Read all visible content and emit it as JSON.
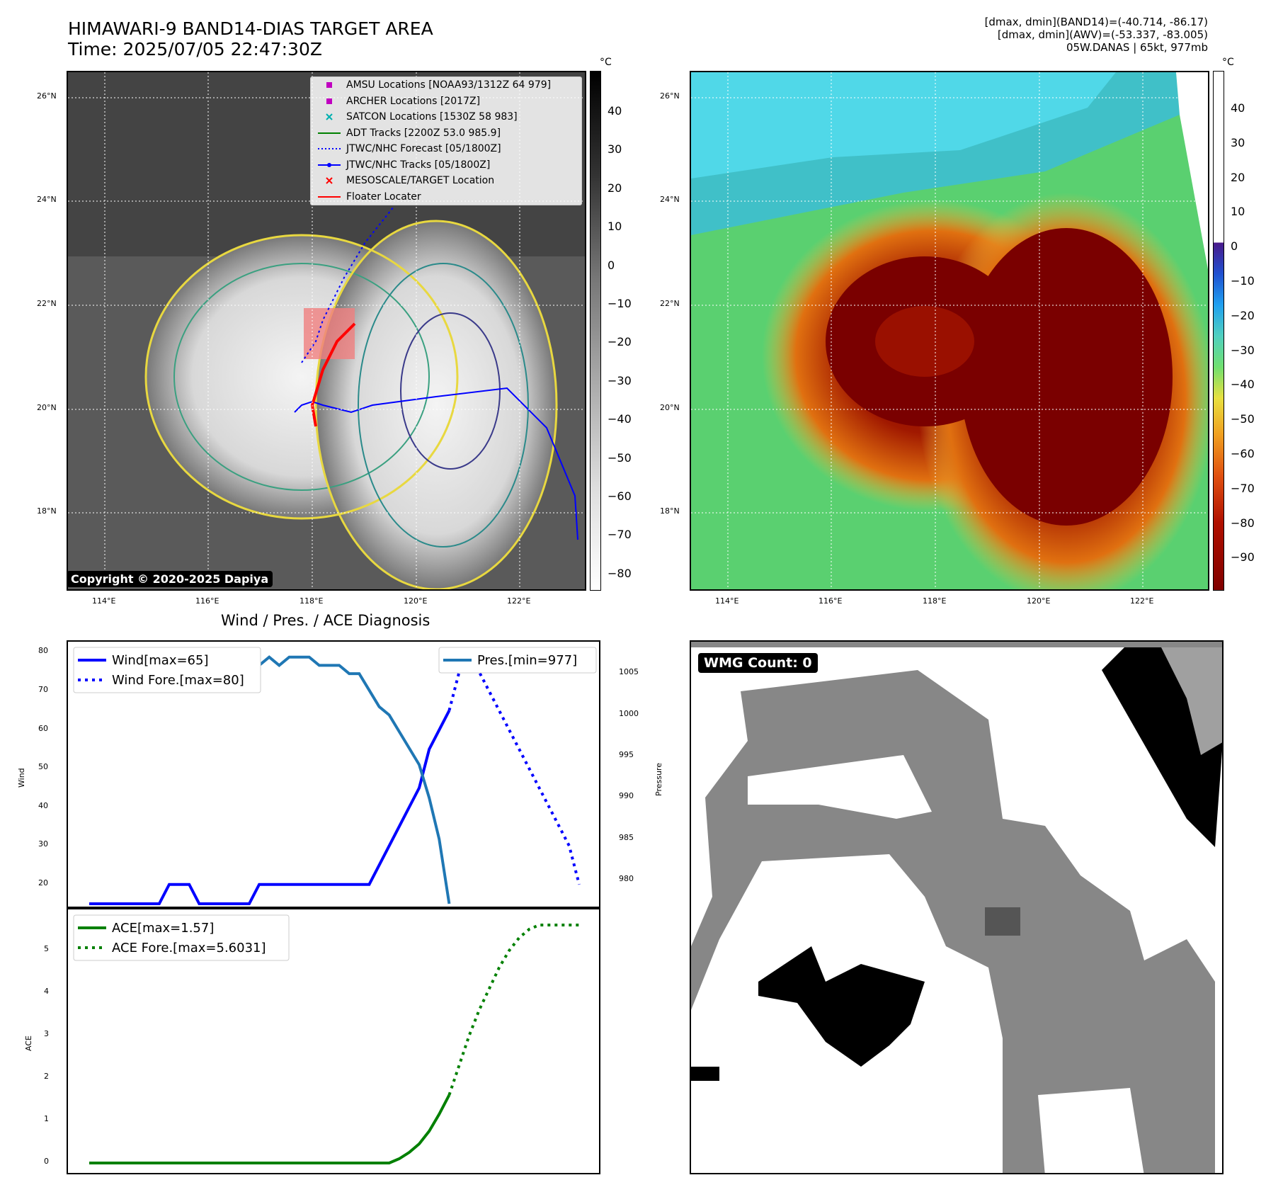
{
  "header": {
    "title_line1": "HIMAWARI-9 BAND14-DIAS TARGET AREA",
    "title_line2": "Time: 2025/07/05 22:47:30Z",
    "diag_line1": "[dmax, dmin](BAND14)=(-40.714, -86.17)",
    "diag_line2": "[dmax, dmin](AWV)=(-53.337, -83.005)",
    "diag_line3": "05W.DANAS | 65kt, 977mb"
  },
  "map": {
    "lat_ticks": [
      "26°N",
      "24°N",
      "22°N",
      "20°N",
      "18°N"
    ],
    "lon_ticks": [
      "114°E",
      "116°E",
      "118°E",
      "120°E",
      "122°E"
    ],
    "copyright": "Copyright © 2020-2025 Dapiya",
    "legend": [
      {
        "label": "AMSU Locations [NOAA93/1312Z 64 979]",
        "symbol": "square",
        "color": "#c000c0"
      },
      {
        "label": "ARCHER Locations [2017Z]",
        "symbol": "square",
        "color": "#c000c0"
      },
      {
        "label": "SATCON Locations [1530Z 58 983]",
        "symbol": "x",
        "color": "#00b0b0"
      },
      {
        "label": "ADT Tracks [2200Z 53.0 985.9]",
        "symbol": "line",
        "color": "#008000"
      },
      {
        "label": "JTWC/NHC Forecast [05/1800Z]",
        "symbol": "dotted",
        "color": "#0000ff"
      },
      {
        "label": "JTWC/NHC Tracks [05/1800Z]",
        "symbol": "line-dot",
        "color": "#0000ff"
      },
      {
        "label": "MESOSCALE/TARGET Location",
        "symbol": "x",
        "color": "#ff0000"
      },
      {
        "label": "Floater Locater",
        "symbol": "line",
        "color": "#ff0000"
      }
    ]
  },
  "colorbar1": {
    "unit": "°C",
    "ticks": [
      "40",
      "30",
      "20",
      "10",
      "0",
      "−10",
      "−20",
      "−30",
      "−40",
      "−50",
      "−60",
      "−70",
      "−80"
    ]
  },
  "colorbar2": {
    "unit": "°C",
    "ticks": [
      "40",
      "30",
      "20",
      "10",
      "0",
      "−10",
      "−20",
      "−30",
      "−40",
      "−50",
      "−60",
      "−70",
      "−80",
      "−90"
    ]
  },
  "chart_data": [
    {
      "type": "line",
      "title": "Wind / Pres. / ACE Diagnosis",
      "ylabel": "Wind",
      "y2label": "Pressure",
      "ylim": [
        15,
        81
      ],
      "y2lim": [
        977.2,
        1008
      ],
      "yticks": [
        20,
        30,
        40,
        50,
        60,
        70,
        80
      ],
      "y2ticks": [
        980,
        985,
        990,
        995,
        1000,
        1005
      ],
      "series": [
        {
          "name": "Wind[max=65]",
          "style": "solid",
          "color": "#0000ff",
          "axis": "left",
          "x": [
            0,
            1,
            2,
            3,
            4,
            5,
            6,
            7,
            8,
            9,
            10,
            11,
            12,
            13,
            14,
            15,
            16,
            17,
            18,
            19,
            20,
            21,
            22,
            23,
            24,
            25,
            26,
            27,
            28,
            29,
            30,
            31,
            32,
            33,
            34,
            35,
            36,
            37,
            38,
            39,
            40
          ],
          "values": [
            15,
            15,
            15,
            15,
            15,
            15,
            15,
            15,
            20,
            20,
            20,
            15,
            15,
            15,
            15,
            15,
            15,
            20,
            20,
            20,
            20,
            20,
            20,
            20,
            20,
            20,
            20,
            20,
            20,
            25,
            30,
            35,
            40,
            45,
            55,
            60,
            65,
            null,
            null,
            null,
            null
          ]
        },
        {
          "name": "Wind Fore.[max=80]",
          "style": "dotted",
          "color": "#0000ff",
          "axis": "left",
          "x": [
            36,
            37,
            38,
            39,
            40,
            41,
            42,
            43,
            44,
            45,
            46,
            47,
            48,
            49
          ],
          "values": [
            65,
            75,
            80,
            75,
            70,
            65,
            60,
            55,
            50,
            45,
            40,
            35,
            30,
            20
          ]
        },
        {
          "name": "Pres.[min=977]",
          "style": "solid",
          "color": "#1f77b4",
          "axis": "right",
          "x": [
            0,
            1,
            2,
            3,
            4,
            5,
            6,
            7,
            8,
            9,
            10,
            11,
            12,
            13,
            14,
            15,
            16,
            17,
            18,
            19,
            20,
            21,
            22,
            23,
            24,
            25,
            26,
            27,
            28,
            29,
            30,
            31,
            32,
            33,
            34,
            35,
            36
          ],
          "values": [
            1008,
            1008,
            1008,
            1008,
            1008,
            1006,
            1006,
            1006,
            1006,
            1006,
            1006,
            1006,
            1006,
            1006,
            1006,
            1006,
            1006,
            1006,
            1007,
            1006,
            1007,
            1007,
            1007,
            1006,
            1006,
            1006,
            1005,
            1005,
            1003,
            1001,
            1000,
            998,
            996,
            994,
            990,
            985,
            977.2
          ]
        }
      ]
    },
    {
      "type": "line",
      "ylabel": "ACE",
      "ylim": [
        -0.1,
        5.8
      ],
      "yticks": [
        0,
        1,
        2,
        3,
        4,
        5
      ],
      "series": [
        {
          "name": "ACE[max=1.57]",
          "style": "solid",
          "color": "#008000",
          "x": [
            0,
            4,
            8,
            12,
            16,
            20,
            24,
            28,
            30,
            31,
            32,
            33,
            34,
            35,
            36
          ],
          "values": [
            0,
            0,
            0,
            0,
            0,
            0,
            0,
            0,
            0,
            0.1,
            0.25,
            0.45,
            0.75,
            1.15,
            1.6
          ]
        },
        {
          "name": "ACE Fore.[max=5.6031]",
          "style": "dotted",
          "color": "#008000",
          "x": [
            36,
            37,
            38,
            39,
            40,
            41,
            42,
            43,
            44,
            45,
            46,
            47,
            48,
            49
          ],
          "values": [
            1.6,
            2.3,
            3.0,
            3.6,
            4.1,
            4.6,
            5.0,
            5.3,
            5.5,
            5.6,
            5.6,
            5.6,
            5.6,
            5.6
          ]
        }
      ]
    }
  ],
  "wmg": {
    "label": "WMG Count: 0"
  }
}
